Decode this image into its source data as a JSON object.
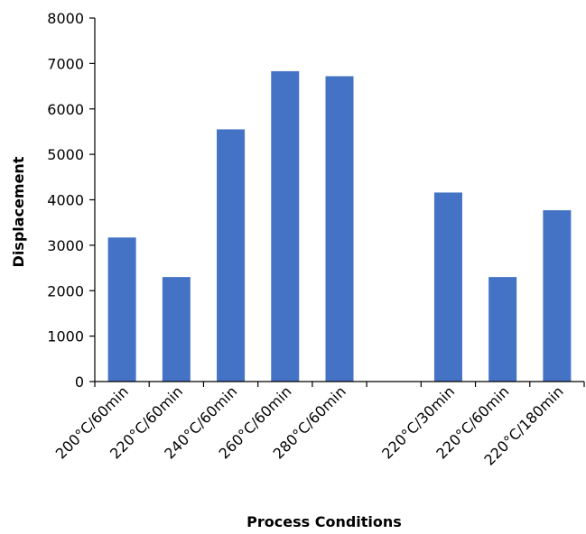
{
  "chart_data": {
    "type": "bar",
    "categories": [
      "200°C/60min",
      "220°C/60min",
      "240°C/60min",
      "260°C/60min",
      "280°C/60min",
      "",
      "220°C/30min",
      "220°C/60min",
      "220°C/180min"
    ],
    "series": [
      {
        "values": [
          3170,
          2300,
          5550,
          6830,
          6720,
          null,
          4160,
          2300,
          3770
        ],
        "color": "#4472c4"
      }
    ],
    "title": "",
    "xlabel": "Process Conditions",
    "ylabel": "Displacement",
    "ylim": [
      0,
      8000
    ],
    "yticks": [
      0,
      1000,
      2000,
      3000,
      4000,
      5000,
      6000,
      7000,
      8000
    ],
    "grid": false,
    "legend": "none"
  }
}
